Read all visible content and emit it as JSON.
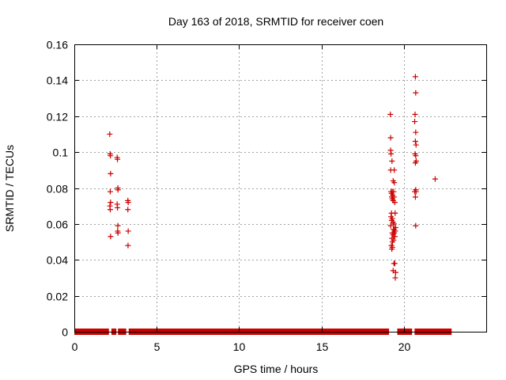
{
  "chart_data": {
    "type": "scatter",
    "title": "Day 163 of 2018, SRMTID for receiver coen",
    "xlabel": "GPS time / hours",
    "ylabel": "SRMTID / TECUs",
    "xlim": [
      0,
      25
    ],
    "ylim": [
      0,
      0.16
    ],
    "x_ticks": [
      0,
      5,
      10,
      15,
      20
    ],
    "x_tick_labels": [
      "0",
      "5",
      "10",
      "15",
      "20"
    ],
    "y_ticks": [
      0,
      0.02,
      0.04,
      0.06,
      0.08,
      0.1,
      0.12,
      0.14,
      0.16
    ],
    "y_tick_labels": [
      "0",
      "0.02",
      "0.04",
      "0.06",
      "0.08",
      "0.1",
      "0.12",
      "0.14",
      "0.16"
    ],
    "grid": true,
    "marker": "+",
    "color": "#cc0000",
    "zero_baseline_segments": [
      [
        0.0,
        2.1
      ],
      [
        2.25,
        2.55
      ],
      [
        2.65,
        3.15
      ],
      [
        3.3,
        19.1
      ],
      [
        19.6,
        20.5
      ],
      [
        20.65,
        22.9
      ]
    ],
    "series": [
      {
        "name": "SRMTID",
        "points": [
          [
            2.15,
            0.11
          ],
          [
            2.17,
            0.099
          ],
          [
            2.19,
            0.098
          ],
          [
            2.2,
            0.088
          ],
          [
            2.18,
            0.078
          ],
          [
            2.2,
            0.072
          ],
          [
            2.16,
            0.07
          ],
          [
            2.18,
            0.068
          ],
          [
            2.2,
            0.053
          ],
          [
            2.6,
            0.097
          ],
          [
            2.62,
            0.096
          ],
          [
            2.64,
            0.08
          ],
          [
            2.65,
            0.079
          ],
          [
            2.6,
            0.071
          ],
          [
            2.62,
            0.069
          ],
          [
            2.64,
            0.059
          ],
          [
            2.63,
            0.056
          ],
          [
            2.65,
            0.055
          ],
          [
            3.25,
            0.073
          ],
          [
            3.27,
            0.072
          ],
          [
            3.25,
            0.068
          ],
          [
            3.27,
            0.056
          ],
          [
            3.26,
            0.048
          ],
          [
            19.18,
            0.121
          ],
          [
            19.2,
            0.108
          ],
          [
            19.2,
            0.101
          ],
          [
            19.22,
            0.099
          ],
          [
            19.28,
            0.095
          ],
          [
            19.2,
            0.09
          ],
          [
            19.42,
            0.09
          ],
          [
            19.35,
            0.084
          ],
          [
            19.42,
            0.083
          ],
          [
            19.22,
            0.078
          ],
          [
            19.3,
            0.078
          ],
          [
            19.38,
            0.078
          ],
          [
            19.25,
            0.077
          ],
          [
            19.32,
            0.076
          ],
          [
            19.27,
            0.075
          ],
          [
            19.4,
            0.075
          ],
          [
            19.3,
            0.074
          ],
          [
            19.35,
            0.073
          ],
          [
            19.45,
            0.072
          ],
          [
            19.25,
            0.066
          ],
          [
            19.47,
            0.066
          ],
          [
            19.22,
            0.064
          ],
          [
            19.3,
            0.063
          ],
          [
            19.26,
            0.062
          ],
          [
            19.35,
            0.061
          ],
          [
            19.4,
            0.06
          ],
          [
            19.2,
            0.059
          ],
          [
            19.5,
            0.058
          ],
          [
            19.42,
            0.057
          ],
          [
            19.37,
            0.057
          ],
          [
            19.48,
            0.056
          ],
          [
            19.3,
            0.055
          ],
          [
            19.42,
            0.055
          ],
          [
            19.35,
            0.054
          ],
          [
            19.45,
            0.053
          ],
          [
            19.28,
            0.052
          ],
          [
            19.38,
            0.051
          ],
          [
            19.31,
            0.05
          ],
          [
            19.25,
            0.048
          ],
          [
            19.3,
            0.047
          ],
          [
            19.27,
            0.046
          ],
          [
            19.4,
            0.038
          ],
          [
            19.45,
            0.038
          ],
          [
            19.35,
            0.034
          ],
          [
            19.5,
            0.033
          ],
          [
            19.48,
            0.03
          ],
          [
            20.7,
            0.142
          ],
          [
            20.72,
            0.133
          ],
          [
            20.68,
            0.121
          ],
          [
            20.66,
            0.117
          ],
          [
            20.72,
            0.111
          ],
          [
            20.7,
            0.106
          ],
          [
            20.74,
            0.104
          ],
          [
            20.68,
            0.099
          ],
          [
            20.72,
            0.098
          ],
          [
            20.75,
            0.095
          ],
          [
            20.7,
            0.094
          ],
          [
            20.72,
            0.079
          ],
          [
            20.74,
            0.078
          ],
          [
            20.66,
            0.078
          ],
          [
            20.7,
            0.075
          ],
          [
            20.72,
            0.059
          ],
          [
            21.9,
            0.085
          ]
        ]
      }
    ]
  }
}
